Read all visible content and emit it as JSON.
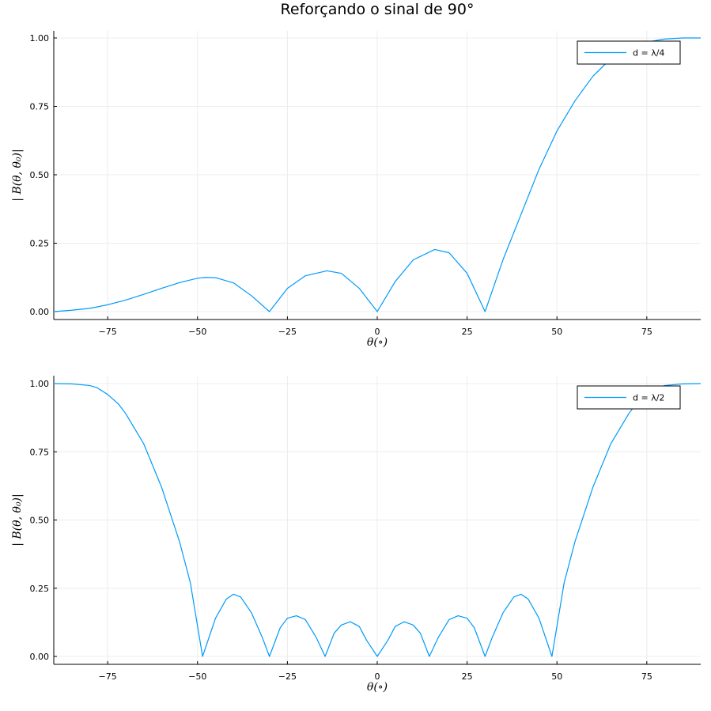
{
  "figure_title": "Reforçando o sinal de 90°",
  "chart_data": [
    {
      "type": "line",
      "title": "",
      "xlabel": "θ(∘)",
      "ylabel": "| B(θ, θ₀)|",
      "xlim": [
        -90,
        90
      ],
      "ylim": [
        0,
        1
      ],
      "xticks": [
        -75,
        -50,
        -25,
        0,
        25,
        50,
        75
      ],
      "xtick_labels": [
        "−75",
        "−50",
        "−25",
        "0",
        "25",
        "50",
        "75"
      ],
      "yticks": [
        0,
        0.25,
        0.5,
        0.75,
        1
      ],
      "ytick_labels": [
        "0.00",
        "0.25",
        "0.50",
        "0.75",
        "1.00"
      ],
      "grid": true,
      "legend": "top-right",
      "color": "#009AFA",
      "series": [
        {
          "name": "d = λ/4",
          "x": [
            -90,
            -85,
            -80,
            -75,
            -70,
            -65,
            -60,
            -55,
            -50,
            -48,
            -45,
            -40,
            -35,
            -30,
            -25,
            -20,
            -14,
            -10,
            -5,
            0,
            5,
            10,
            16,
            20,
            25,
            30,
            35,
            40,
            45,
            50,
            55,
            60,
            65,
            70,
            75,
            80,
            85,
            90
          ],
          "y": [
            0,
            0.005,
            0.012,
            0.025,
            0.042,
            0.063,
            0.085,
            0.106,
            0.122,
            0.125,
            0.124,
            0.105,
            0.058,
            0,
            0.085,
            0.131,
            0.149,
            0.14,
            0.085,
            0,
            0.11,
            0.189,
            0.227,
            0.215,
            0.14,
            0,
            0.19,
            0.355,
            0.52,
            0.66,
            0.77,
            0.86,
            0.925,
            0.962,
            0.985,
            0.996,
            1,
            1
          ]
        }
      ]
    },
    {
      "type": "line",
      "title": "",
      "xlabel": "θ(∘)",
      "ylabel": "| B(θ, θ₀)|",
      "xlim": [
        -90,
        90
      ],
      "ylim": [
        0,
        1
      ],
      "xticks": [
        -75,
        -50,
        -25,
        0,
        25,
        50,
        75
      ],
      "xtick_labels": [
        "−75",
        "−50",
        "−25",
        "0",
        "25",
        "50",
        "75"
      ],
      "yticks": [
        0,
        0.25,
        0.5,
        0.75,
        1
      ],
      "ytick_labels": [
        "0.00",
        "0.25",
        "0.50",
        "0.75",
        "1.00"
      ],
      "grid": true,
      "legend": "top-right",
      "color": "#009AFA",
      "series": [
        {
          "name": "d = λ/2",
          "x": [
            -90,
            -85,
            -80,
            -78,
            -75,
            -72,
            -70,
            -65,
            -60,
            -55,
            -52,
            -48.6,
            -45,
            -42,
            -40,
            -38,
            -35,
            -32,
            -30,
            -27,
            -25,
            -22.5,
            -20,
            -17,
            -14.5,
            -12,
            -10,
            -7.5,
            -5,
            -3,
            0,
            3,
            5,
            7.5,
            10,
            12,
            14.5,
            17,
            20,
            22.5,
            25,
            27,
            30,
            32,
            35,
            38,
            40,
            42,
            45,
            48.6,
            52,
            55,
            60,
            65,
            70,
            72,
            75,
            78,
            80,
            85,
            90
          ],
          "y": [
            1,
            0.999,
            0.993,
            0.985,
            0.96,
            0.925,
            0.89,
            0.78,
            0.62,
            0.42,
            0.27,
            0,
            0.14,
            0.21,
            0.228,
            0.218,
            0.16,
            0.07,
            0,
            0.105,
            0.14,
            0.149,
            0.135,
            0.07,
            0,
            0.085,
            0.115,
            0.127,
            0.11,
            0.06,
            0,
            0.06,
            0.11,
            0.127,
            0.115,
            0.085,
            0,
            0.07,
            0.135,
            0.149,
            0.14,
            0.105,
            0,
            0.07,
            0.16,
            0.218,
            0.228,
            0.21,
            0.14,
            0,
            0.27,
            0.42,
            0.62,
            0.78,
            0.89,
            0.925,
            0.96,
            0.985,
            0.993,
            0.999,
            1
          ]
        }
      ]
    }
  ]
}
